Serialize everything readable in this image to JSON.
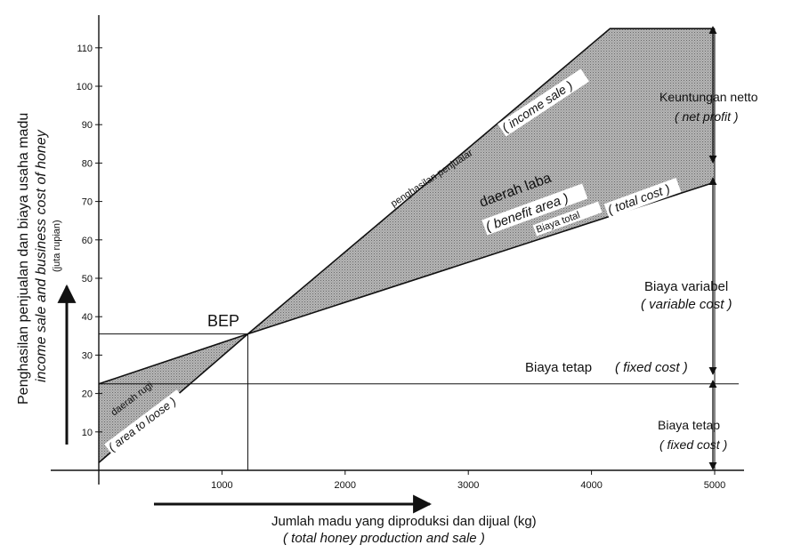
{
  "chart_data": {
    "type": "line",
    "x_ticks": [
      1000,
      2000,
      3000,
      4000,
      5000
    ],
    "y_ticks": [
      10,
      20,
      30,
      40,
      50,
      60,
      70,
      80,
      90,
      100,
      110
    ],
    "xlim": [
      0,
      5000
    ],
    "ylim": [
      0,
      115
    ],
    "grid": false,
    "series": [
      {
        "key": "income",
        "x": [
          0,
          1210,
          4150,
          5000
        ],
        "y": [
          2,
          35.5,
          115,
          115
        ]
      },
      {
        "key": "total_cost",
        "x": [
          0,
          1210,
          5000
        ],
        "y": [
          22.5,
          35.5,
          75
        ]
      },
      {
        "key": "fixed_cost",
        "x": [
          0,
          5000
        ],
        "y": [
          22.5,
          22.5
        ]
      }
    ],
    "bep": {
      "x": 1210,
      "y": 35.5
    },
    "labels": {
      "income_line": "penghasilan penjualar",
      "income_line_en": "( income sale )",
      "total_cost_line": "Biaya total",
      "total_cost_line_en": "( total cost )",
      "benefit_area": "daerah laba",
      "benefit_area_en": "( benefit area )",
      "loss_area": "daerah rugi",
      "loss_area_en": "( area to loose )",
      "bep": "BEP",
      "net_profit": "Keuntungan netto",
      "net_profit_en": "( net profit )",
      "variable_cost": "Biaya variabel",
      "variable_cost_en": "( variable cost )",
      "fixed_cost_mid": "Biaya tetap",
      "fixed_cost_mid_en": "( fixed cost )",
      "fixed_cost_low": "Biaya tetap",
      "fixed_cost_low_en": "( fixed cost )"
    },
    "xlabel": "Jumlah madu yang diproduksi dan dijual (kg)",
    "xlabel_en": "( total honey production and sale )",
    "ylabel": "Penghasilan penjualan dan biaya usaha madu",
    "ylabel_en": "income sale and business cost of honey",
    "ylabel_unit": "(juta rupian)",
    "colors": {
      "fill": "#a9a9a9",
      "line": "#111111",
      "background": "#ffffff"
    }
  }
}
